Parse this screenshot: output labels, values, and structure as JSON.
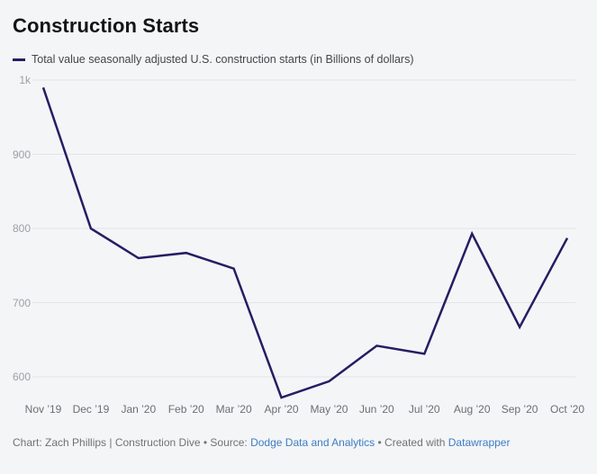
{
  "title": "Construction Starts",
  "legend": {
    "label": "Total value seasonally adjusted U.S. construction starts (in Billions of dollars)"
  },
  "chart_data": {
    "type": "line",
    "title": "Construction Starts",
    "x": [
      "Nov ’19",
      "Dec ’19",
      "Jan ’20",
      "Feb ’20",
      "Mar ’20",
      "Apr ’20",
      "May ’20",
      "Jun ’20",
      "Jul ’20",
      "Aug ’20",
      "Sep ’20",
      "Oct ’20"
    ],
    "series": [
      {
        "name": "Total value seasonally adjusted U.S. construction starts (in Billions of dollars)",
        "values": [
          990,
          800,
          760,
          767,
          746,
          572,
          594,
          642,
          631,
          793,
          667,
          787
        ]
      }
    ],
    "ylabel": "",
    "xlabel": "",
    "ylim": [
      565,
      1005
    ],
    "yticks": {
      "values": [
        1000,
        900,
        800,
        700,
        600
      ],
      "labels": [
        "1k",
        "900",
        "800",
        "700",
        "600"
      ]
    },
    "grid": true,
    "legend_position": "top-left"
  },
  "colors": {
    "background": "#f4f5f7",
    "line": "#241e63",
    "grid": "#e3e4e8",
    "y_label": "#9da0a4",
    "x_label": "#6b6e72",
    "footer_text": "#727272",
    "link": "#3d7dc2"
  },
  "footer": {
    "prefix": "Chart: Zach Phillips | Construction Dive • Source: ",
    "source_link": "Dodge Data and Analytics",
    "middle": " • Created with ",
    "tool_link": "Datawrapper"
  }
}
